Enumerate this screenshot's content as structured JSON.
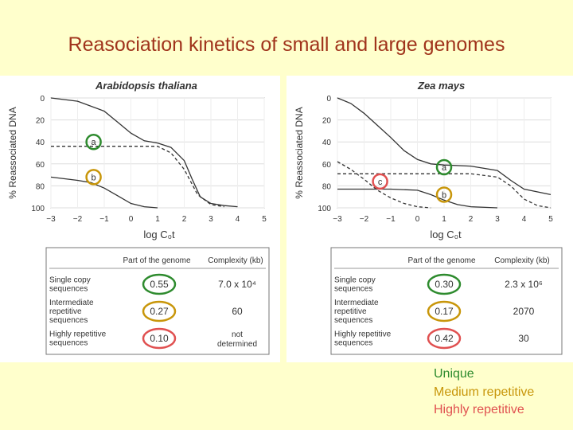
{
  "slide": {
    "title": "Reasociation kinetics of small and large genomes"
  },
  "legend": [
    {
      "label": "Unique",
      "color": "#2e8b2e"
    },
    {
      "label": "Medium repetitive",
      "color": "#c8960a"
    },
    {
      "label": "Highly repetitive",
      "color": "#e05050"
    }
  ],
  "colors": {
    "background": "#ffffcc",
    "title": "#a0341c"
  },
  "chart_data": [
    {
      "type": "line",
      "title": "Arabidopsis thaliana",
      "xlabel": "log C₀t",
      "ylabel": "% Reassociated DNA",
      "x_ticks": [
        "−3",
        "−2",
        "−1",
        "0",
        "1",
        "2",
        "3",
        "4",
        "5"
      ],
      "y_ticks": [
        "0",
        "20",
        "40",
        "60",
        "80",
        "100"
      ],
      "xlim": [
        -3,
        5
      ],
      "ylim": [
        0,
        100
      ],
      "y_inverted": true,
      "series": [
        {
          "style": "solid",
          "points": [
            [
              -3,
              0
            ],
            [
              -2,
              3
            ],
            [
              -1,
              12
            ],
            [
              -0.5,
              22
            ],
            [
              0,
              32
            ],
            [
              0.5,
              39
            ],
            [
              1,
              41
            ],
            [
              1.5,
              45
            ],
            [
              2,
              57
            ],
            [
              2.3,
              74
            ],
            [
              2.6,
              90
            ],
            [
              3,
              96
            ],
            [
              3.5,
              98
            ],
            [
              4,
              99
            ]
          ]
        },
        {
          "style": "dashed",
          "points": [
            [
              -3,
              44
            ],
            [
              -2,
              44
            ],
            [
              -1,
              44
            ],
            [
              0,
              44
            ],
            [
              1,
              44
            ],
            [
              1.5,
              50
            ],
            [
              2,
              65
            ],
            [
              2.5,
              88
            ],
            [
              3,
              97
            ],
            [
              3.5,
              99
            ]
          ]
        },
        {
          "style": "solid",
          "points": [
            [
              -3,
              72
            ],
            [
              -2,
              75
            ],
            [
              -1.5,
              77
            ],
            [
              -1,
              82
            ],
            [
              -0.5,
              89
            ],
            [
              0,
              96
            ],
            [
              0.5,
              99
            ],
            [
              1,
              100
            ]
          ]
        }
      ],
      "annotations": [
        {
          "label": "a",
          "color": "#2e8b2e",
          "x": -1.4,
          "y": 40
        },
        {
          "label": "b",
          "color": "#c8960a",
          "x": -1.4,
          "y": 72
        }
      ],
      "table": {
        "headers": [
          "Part of the genome",
          "Complexity (kb)"
        ],
        "rows": [
          {
            "name": "Single copy sequences",
            "fraction": "0.55",
            "complexity": "7.0 x 10⁴",
            "ring": "#2e8b2e"
          },
          {
            "name": "Intermediate repetitive sequences",
            "fraction": "0.27",
            "complexity": "60",
            "ring": "#c8960a"
          },
          {
            "name": "Highly repetitive sequences",
            "fraction": "0.10",
            "complexity": "not determined",
            "ring": "#e05050"
          }
        ]
      }
    },
    {
      "type": "line",
      "title": "Zea mays",
      "xlabel": "log C₀t",
      "ylabel": "% Reassociated DNA",
      "x_ticks": [
        "−3",
        "−2",
        "−1",
        "0",
        "1",
        "2",
        "3",
        "4",
        "5"
      ],
      "y_ticks": [
        "0",
        "20",
        "40",
        "60",
        "80",
        "100"
      ],
      "xlim": [
        -3,
        5
      ],
      "ylim": [
        0,
        100
      ],
      "y_inverted": true,
      "series": [
        {
          "style": "solid",
          "points": [
            [
              -3,
              0
            ],
            [
              -2.5,
              5
            ],
            [
              -2,
              14
            ],
            [
              -1.5,
              25
            ],
            [
              -1,
              36
            ],
            [
              -0.5,
              48
            ],
            [
              0,
              56
            ],
            [
              0.5,
              60
            ],
            [
              1,
              61
            ],
            [
              2,
              62
            ],
            [
              3,
              66
            ],
            [
              3.5,
              75
            ],
            [
              4,
              83
            ],
            [
              5,
              88
            ]
          ]
        },
        {
          "style": "dashed",
          "points": [
            [
              -3,
              69
            ],
            [
              -2,
              69
            ],
            [
              -1,
              69
            ],
            [
              0,
              69
            ],
            [
              1,
              69
            ],
            [
              2,
              69
            ],
            [
              3,
              72
            ],
            [
              3.5,
              80
            ],
            [
              4,
              92
            ],
            [
              4.5,
              98
            ],
            [
              5,
              100
            ]
          ]
        },
        {
          "style": "solid",
          "points": [
            [
              -3,
              83
            ],
            [
              -1,
              83
            ],
            [
              0,
              84
            ],
            [
              0.5,
              88
            ],
            [
              1,
              93
            ],
            [
              1.5,
              97
            ],
            [
              2,
              99
            ],
            [
              3,
              100
            ]
          ]
        },
        {
          "style": "dashed",
          "points": [
            [
              -3,
              58
            ],
            [
              -2.5,
              65
            ],
            [
              -2,
              74
            ],
            [
              -1.5,
              84
            ],
            [
              -1,
              91
            ],
            [
              -0.5,
              96
            ],
            [
              0,
              99
            ],
            [
              0.5,
              100
            ]
          ]
        }
      ],
      "annotations": [
        {
          "label": "a",
          "color": "#2e8b2e",
          "x": 1,
          "y": 63
        },
        {
          "label": "b",
          "color": "#c8960a",
          "x": 1,
          "y": 88
        },
        {
          "label": "c",
          "color": "#e05050",
          "x": -1.4,
          "y": 76
        }
      ],
      "table": {
        "headers": [
          "Part of the genome",
          "Complexity (kb)"
        ],
        "rows": [
          {
            "name": "Single copy sequences",
            "fraction": "0.30",
            "complexity": "2.3 x 10⁶",
            "ring": "#2e8b2e"
          },
          {
            "name": "Intermediate repetitive sequences",
            "fraction": "0.17",
            "complexity": "2070",
            "ring": "#c8960a"
          },
          {
            "name": "Highly repetitive sequences",
            "fraction": "0.42",
            "complexity": "30",
            "ring": "#e05050"
          }
        ]
      }
    }
  ]
}
